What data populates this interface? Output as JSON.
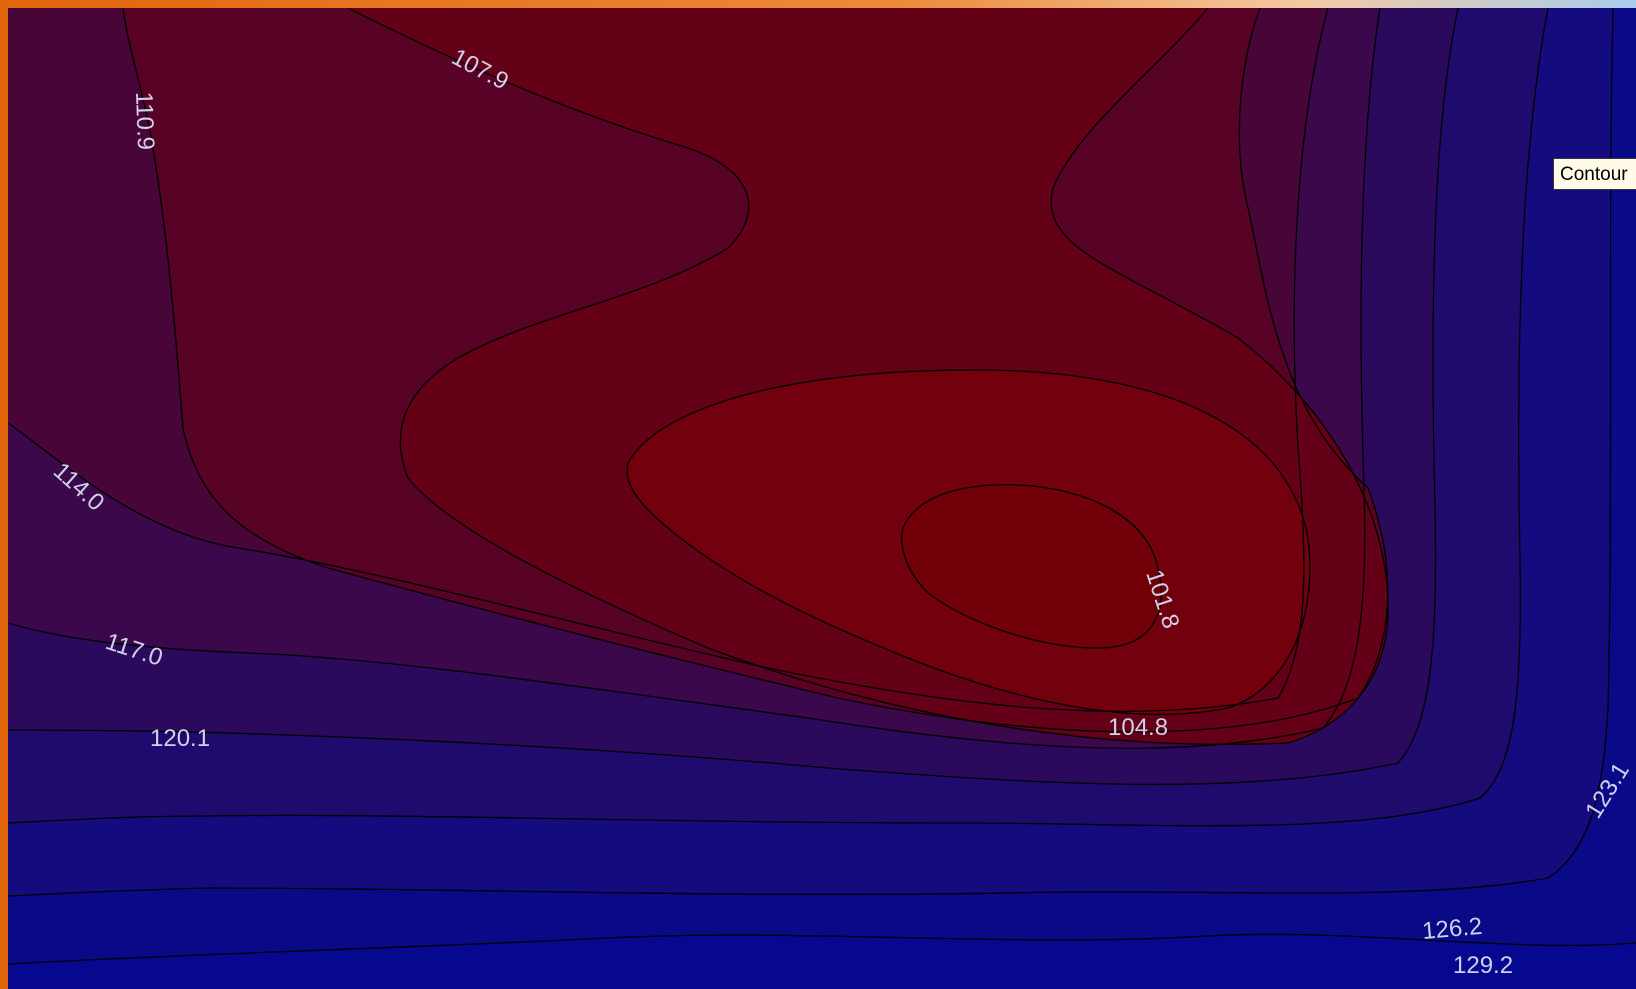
{
  "chart_data": {
    "type": "contour",
    "contour_levels": [
      101.8,
      104.8,
      107.9,
      110.9,
      114.0,
      117.0,
      120.1,
      123.1,
      126.2,
      129.2
    ],
    "level_labels": [
      "101.8",
      "104.8",
      "107.9",
      "110.9",
      "114.0",
      "117.0",
      "120.1",
      "123.1",
      "126.2",
      "129.2"
    ],
    "colormap": {
      "low": "#720009",
      "high": "#060890",
      "bands": [
        "#720009",
        "#72000d",
        "#650117",
        "#580325",
        "#480537",
        "#3a084b",
        "#2b0a5d",
        "#1f0b6e",
        "#140c7e",
        "#0a0a89",
        "#060890"
      ]
    },
    "line_color": "#000000",
    "label_color": "#d0d0e8"
  },
  "tooltip": {
    "text": "Contour"
  }
}
